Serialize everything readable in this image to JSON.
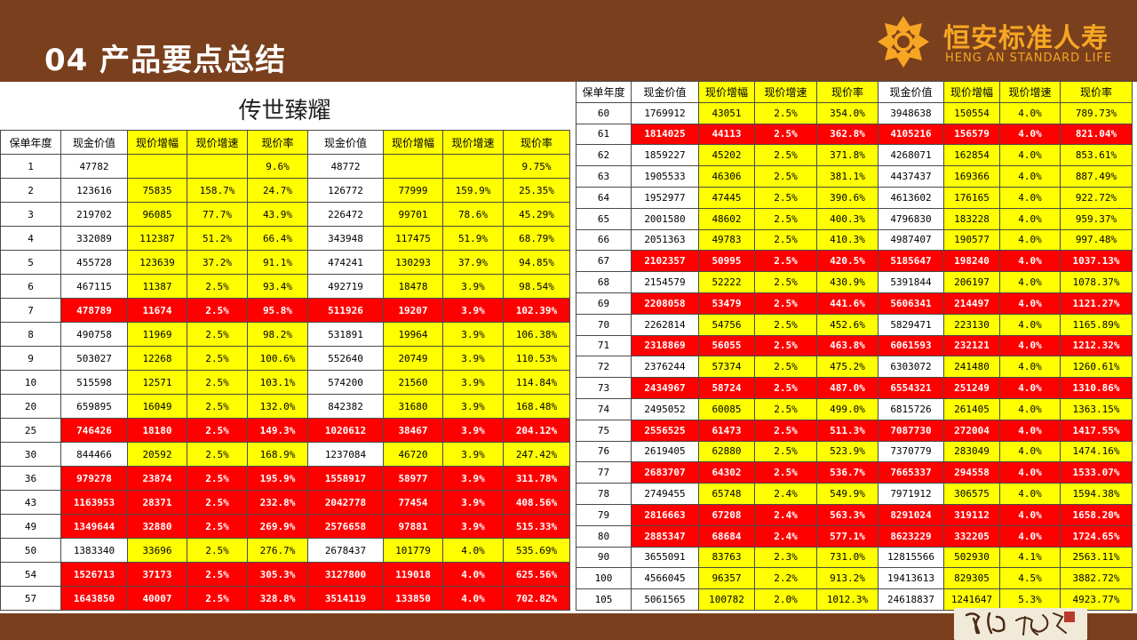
{
  "header": {
    "title": "04 产品要点总结",
    "brand_cn": "恒安标准人寿",
    "brand_en": "HENG AN STANDARD LIFE",
    "brand_color": "#f6a623",
    "bar_color": "#7a3f1d"
  },
  "product_title": "传世臻耀",
  "footer_seal_icon": "chuanshi-zhenyao-seal",
  "columns": [
    "保单年度",
    "现金价值",
    "现价增幅",
    "现价增速",
    "现价率",
    "现金价值",
    "现价增幅",
    "现价增速",
    "现价率"
  ],
  "colors": {
    "highlight": "#ff0000",
    "yellow": "#ffff00"
  },
  "left_rows": [
    {
      "hl": false,
      "c": [
        "1",
        "47782",
        "",
        "",
        "9.6%",
        "48772",
        "",
        "",
        "9.75%"
      ]
    },
    {
      "hl": false,
      "c": [
        "2",
        "123616",
        "75835",
        "158.7%",
        "24.7%",
        "126772",
        "77999",
        "159.9%",
        "25.35%"
      ]
    },
    {
      "hl": false,
      "c": [
        "3",
        "219702",
        "96085",
        "77.7%",
        "43.9%",
        "226472",
        "99701",
        "78.6%",
        "45.29%"
      ]
    },
    {
      "hl": false,
      "c": [
        "4",
        "332089",
        "112387",
        "51.2%",
        "66.4%",
        "343948",
        "117475",
        "51.9%",
        "68.79%"
      ]
    },
    {
      "hl": false,
      "c": [
        "5",
        "455728",
        "123639",
        "37.2%",
        "91.1%",
        "474241",
        "130293",
        "37.9%",
        "94.85%"
      ]
    },
    {
      "hl": false,
      "c": [
        "6",
        "467115",
        "11387",
        "2.5%",
        "93.4%",
        "492719",
        "18478",
        "3.9%",
        "98.54%"
      ]
    },
    {
      "hl": true,
      "c": [
        "7",
        "478789",
        "11674",
        "2.5%",
        "95.8%",
        "511926",
        "19207",
        "3.9%",
        "102.39%"
      ]
    },
    {
      "hl": false,
      "c": [
        "8",
        "490758",
        "11969",
        "2.5%",
        "98.2%",
        "531891",
        "19964",
        "3.9%",
        "106.38%"
      ]
    },
    {
      "hl": false,
      "c": [
        "9",
        "503027",
        "12268",
        "2.5%",
        "100.6%",
        "552640",
        "20749",
        "3.9%",
        "110.53%"
      ]
    },
    {
      "hl": false,
      "c": [
        "10",
        "515598",
        "12571",
        "2.5%",
        "103.1%",
        "574200",
        "21560",
        "3.9%",
        "114.84%"
      ]
    },
    {
      "hl": false,
      "c": [
        "20",
        "659895",
        "16049",
        "2.5%",
        "132.0%",
        "842382",
        "31680",
        "3.9%",
        "168.48%"
      ]
    },
    {
      "hl": true,
      "c": [
        "25",
        "746426",
        "18180",
        "2.5%",
        "149.3%",
        "1020612",
        "38467",
        "3.9%",
        "204.12%"
      ]
    },
    {
      "hl": false,
      "c": [
        "30",
        "844466",
        "20592",
        "2.5%",
        "168.9%",
        "1237084",
        "46720",
        "3.9%",
        "247.42%"
      ]
    },
    {
      "hl": true,
      "c": [
        "36",
        "979278",
        "23874",
        "2.5%",
        "195.9%",
        "1558917",
        "58977",
        "3.9%",
        "311.78%"
      ]
    },
    {
      "hl": true,
      "c": [
        "43",
        "1163953",
        "28371",
        "2.5%",
        "232.8%",
        "2042778",
        "77454",
        "3.9%",
        "408.56%"
      ]
    },
    {
      "hl": true,
      "c": [
        "49",
        "1349644",
        "32880",
        "2.5%",
        "269.9%",
        "2576658",
        "97881",
        "3.9%",
        "515.33%"
      ]
    },
    {
      "hl": false,
      "c": [
        "50",
        "1383340",
        "33696",
        "2.5%",
        "276.7%",
        "2678437",
        "101779",
        "4.0%",
        "535.69%"
      ]
    },
    {
      "hl": true,
      "c": [
        "54",
        "1526713",
        "37173",
        "2.5%",
        "305.3%",
        "3127800",
        "119018",
        "4.0%",
        "625.56%"
      ]
    },
    {
      "hl": true,
      "c": [
        "57",
        "1643850",
        "40007",
        "2.5%",
        "328.8%",
        "3514119",
        "133850",
        "4.0%",
        "702.82%"
      ]
    }
  ],
  "right_rows": [
    {
      "hl": false,
      "c": [
        "60",
        "1769912",
        "43051",
        "2.5%",
        "354.0%",
        "3948638",
        "150554",
        "4.0%",
        "789.73%"
      ]
    },
    {
      "hl": true,
      "c": [
        "61",
        "1814025",
        "44113",
        "2.5%",
        "362.8%",
        "4105216",
        "156579",
        "4.0%",
        "821.04%"
      ]
    },
    {
      "hl": false,
      "c": [
        "62",
        "1859227",
        "45202",
        "2.5%",
        "371.8%",
        "4268071",
        "162854",
        "4.0%",
        "853.61%"
      ]
    },
    {
      "hl": false,
      "c": [
        "63",
        "1905533",
        "46306",
        "2.5%",
        "381.1%",
        "4437437",
        "169366",
        "4.0%",
        "887.49%"
      ]
    },
    {
      "hl": false,
      "c": [
        "64",
        "1952977",
        "47445",
        "2.5%",
        "390.6%",
        "4613602",
        "176165",
        "4.0%",
        "922.72%"
      ]
    },
    {
      "hl": false,
      "c": [
        "65",
        "2001580",
        "48602",
        "2.5%",
        "400.3%",
        "4796830",
        "183228",
        "4.0%",
        "959.37%"
      ]
    },
    {
      "hl": false,
      "c": [
        "66",
        "2051363",
        "49783",
        "2.5%",
        "410.3%",
        "4987407",
        "190577",
        "4.0%",
        "997.48%"
      ]
    },
    {
      "hl": true,
      "c": [
        "67",
        "2102357",
        "50995",
        "2.5%",
        "420.5%",
        "5185647",
        "198240",
        "4.0%",
        "1037.13%"
      ]
    },
    {
      "hl": false,
      "c": [
        "68",
        "2154579",
        "52222",
        "2.5%",
        "430.9%",
        "5391844",
        "206197",
        "4.0%",
        "1078.37%"
      ]
    },
    {
      "hl": true,
      "c": [
        "69",
        "2208058",
        "53479",
        "2.5%",
        "441.6%",
        "5606341",
        "214497",
        "4.0%",
        "1121.27%"
      ]
    },
    {
      "hl": false,
      "c": [
        "70",
        "2262814",
        "54756",
        "2.5%",
        "452.6%",
        "5829471",
        "223130",
        "4.0%",
        "1165.89%"
      ]
    },
    {
      "hl": true,
      "c": [
        "71",
        "2318869",
        "56055",
        "2.5%",
        "463.8%",
        "6061593",
        "232121",
        "4.0%",
        "1212.32%"
      ]
    },
    {
      "hl": false,
      "c": [
        "72",
        "2376244",
        "57374",
        "2.5%",
        "475.2%",
        "6303072",
        "241480",
        "4.0%",
        "1260.61%"
      ]
    },
    {
      "hl": true,
      "c": [
        "73",
        "2434967",
        "58724",
        "2.5%",
        "487.0%",
        "6554321",
        "251249",
        "4.0%",
        "1310.86%"
      ]
    },
    {
      "hl": false,
      "c": [
        "74",
        "2495052",
        "60085",
        "2.5%",
        "499.0%",
        "6815726",
        "261405",
        "4.0%",
        "1363.15%"
      ]
    },
    {
      "hl": true,
      "c": [
        "75",
        "2556525",
        "61473",
        "2.5%",
        "511.3%",
        "7087730",
        "272004",
        "4.0%",
        "1417.55%"
      ]
    },
    {
      "hl": false,
      "c": [
        "76",
        "2619405",
        "62880",
        "2.5%",
        "523.9%",
        "7370779",
        "283049",
        "4.0%",
        "1474.16%"
      ]
    },
    {
      "hl": true,
      "c": [
        "77",
        "2683707",
        "64302",
        "2.5%",
        "536.7%",
        "7665337",
        "294558",
        "4.0%",
        "1533.07%"
      ]
    },
    {
      "hl": false,
      "c": [
        "78",
        "2749455",
        "65748",
        "2.4%",
        "549.9%",
        "7971912",
        "306575",
        "4.0%",
        "1594.38%"
      ]
    },
    {
      "hl": true,
      "c": [
        "79",
        "2816663",
        "67208",
        "2.4%",
        "563.3%",
        "8291024",
        "319112",
        "4.0%",
        "1658.20%"
      ]
    },
    {
      "hl": true,
      "c": [
        "80",
        "2885347",
        "68684",
        "2.4%",
        "577.1%",
        "8623229",
        "332205",
        "4.0%",
        "1724.65%"
      ]
    },
    {
      "hl": false,
      "c": [
        "90",
        "3655091",
        "83763",
        "2.3%",
        "731.0%",
        "12815566",
        "502930",
        "4.1%",
        "2563.11%"
      ]
    },
    {
      "hl": false,
      "c": [
        "100",
        "4566045",
        "96357",
        "2.2%",
        "913.2%",
        "19413613",
        "829305",
        "4.5%",
        "3882.72%"
      ]
    },
    {
      "hl": false,
      "c": [
        "105",
        "5061565",
        "100782",
        "2.0%",
        "1012.3%",
        "24618837",
        "1241647",
        "5.3%",
        "4923.77%"
      ]
    }
  ]
}
